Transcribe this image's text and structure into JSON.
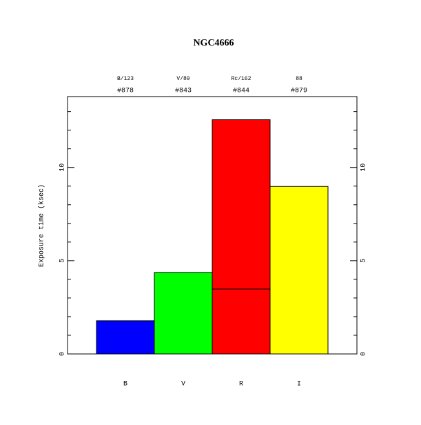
{
  "chart_data": {
    "type": "bar",
    "title": "NGC4666",
    "ylabel": "Exposure time (ksec)",
    "categories": [
      "B",
      "V",
      "R",
      "I"
    ],
    "top_labels": [
      "B/123",
      "V/89",
      "Rc/162",
      "88"
    ],
    "ids": [
      "#878",
      "#843",
      "#844",
      "#879"
    ],
    "segments": [
      [
        1.78
      ],
      [
        4.37
      ],
      [
        3.48,
        9.08
      ],
      [
        8.98
      ]
    ],
    "colors": [
      "#0000ff",
      "#00ff00",
      "#ff0000",
      "#ffff00"
    ],
    "ylim": [
      0,
      13.8
    ],
    "yticks": [
      0,
      5,
      10
    ],
    "minor_yticks": [
      1,
      2,
      3,
      4,
      6,
      7,
      8,
      9,
      11,
      12,
      13
    ]
  }
}
